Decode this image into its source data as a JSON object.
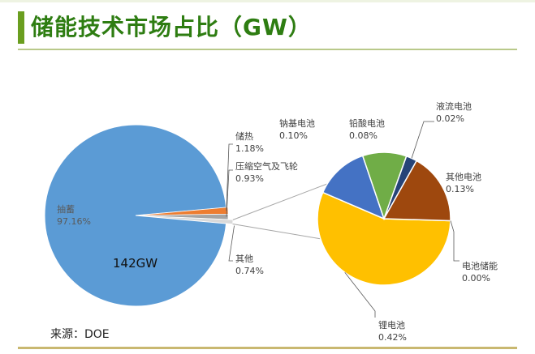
{
  "title": "储能技术市场占比（GW）",
  "source": "来源：DOE",
  "chart_data": {
    "type": "pie",
    "title": "储能技术市场占比（GW）",
    "main": {
      "total_label": "142GW",
      "slices": [
        {
          "name": "抽蓄",
          "value": 97.16,
          "label": "97.16%",
          "color": "#5b9bd5"
        },
        {
          "name": "储热",
          "value": 1.18,
          "label": "1.18%",
          "color": "#ed7d31"
        },
        {
          "name": "压缩空气及飞轮",
          "value": 0.93,
          "label": "0.93%",
          "color": "#a5a5a5"
        },
        {
          "name": "其他",
          "value": 0.74,
          "label": "0.74%",
          "color": "#d9d9d9"
        }
      ]
    },
    "breakout": {
      "of": "其他",
      "slices": [
        {
          "name": "锂电池",
          "value": 0.42,
          "label": "0.42%",
          "color": "#ffc000"
        },
        {
          "name": "钠基电池",
          "value": 0.1,
          "label": "0.10%",
          "color": "#4472c4"
        },
        {
          "name": "铅酸电池",
          "value": 0.08,
          "label": "0.08%",
          "color": "#70ad47"
        },
        {
          "name": "液流电池",
          "value": 0.02,
          "label": "0.02%",
          "color": "#264478"
        },
        {
          "name": "其他电池",
          "value": 0.13,
          "label": "0.13%",
          "color": "#9e480e"
        },
        {
          "name": "电池储能",
          "value": 0.0,
          "label": "0.00%",
          "color": "#636363"
        }
      ]
    }
  }
}
